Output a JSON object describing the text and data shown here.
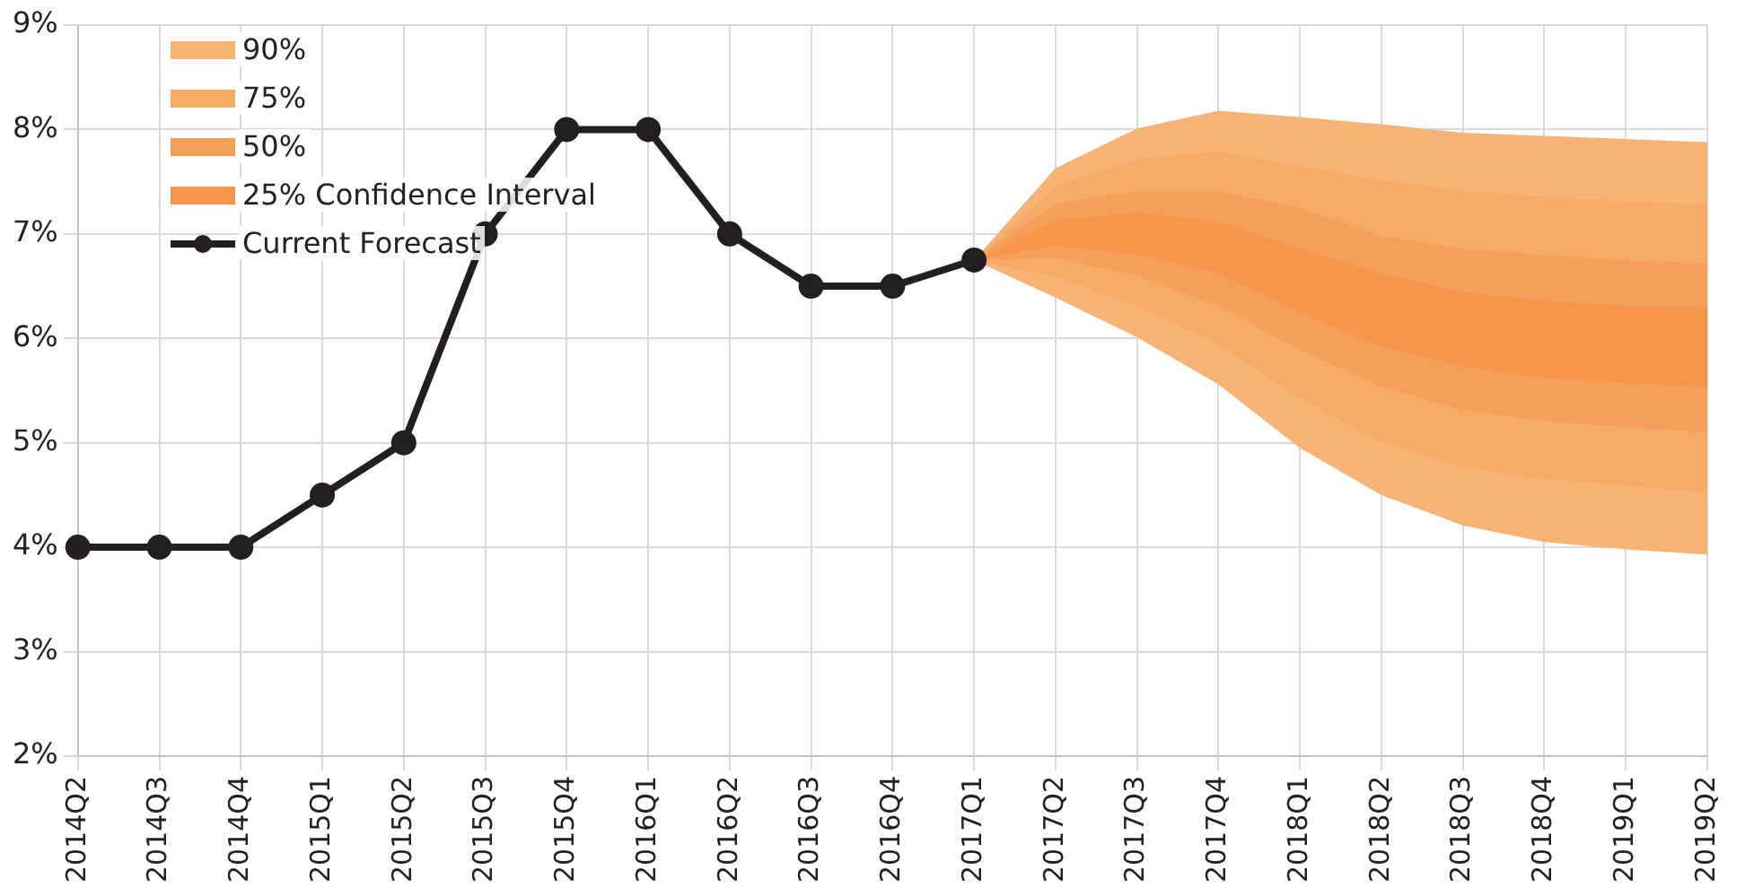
{
  "chart_data": {
    "type": "line",
    "categories": [
      "2014Q2",
      "2014Q3",
      "2014Q4",
      "2015Q1",
      "2015Q2",
      "2015Q3",
      "2015Q4",
      "2016Q1",
      "2016Q2",
      "2016Q3",
      "2016Q4",
      "2017Q1",
      "2017Q2",
      "2017Q3",
      "2017Q4",
      "2018Q1",
      "2018Q2",
      "2018Q3",
      "2018Q4",
      "2019Q1",
      "2019Q2"
    ],
    "series": [
      {
        "name": "90%",
        "type": "area",
        "color": "#f7b275",
        "values": [
          null,
          null,
          null,
          null,
          null,
          null,
          null,
          null,
          null,
          null,
          null,
          null,
          null,
          null,
          null,
          null,
          null,
          null,
          null,
          null,
          null
        ],
        "lower": [
          null,
          null,
          null,
          null,
          null,
          null,
          null,
          null,
          null,
          null,
          null,
          6.75,
          6.39,
          6.01,
          5.56,
          4.95,
          4.5,
          4.21,
          4.05,
          3.98,
          3.93
        ],
        "upper": [
          null,
          null,
          null,
          null,
          null,
          null,
          null,
          null,
          null,
          null,
          null,
          6.75,
          7.63,
          8.01,
          8.18,
          8.12,
          8.05,
          7.97,
          7.94,
          7.91,
          7.88
        ]
      },
      {
        "name": "75%",
        "type": "area",
        "color": "#f6aa68",
        "values": [
          null,
          null,
          null,
          null,
          null,
          null,
          null,
          null,
          null,
          null,
          null,
          null,
          null,
          null,
          null,
          null,
          null,
          null,
          null,
          null,
          null
        ],
        "lower": [
          null,
          null,
          null,
          null,
          null,
          null,
          null,
          null,
          null,
          null,
          null,
          6.75,
          6.59,
          6.31,
          5.95,
          5.42,
          5.01,
          4.77,
          4.65,
          4.59,
          4.53
        ],
        "upper": [
          null,
          null,
          null,
          null,
          null,
          null,
          null,
          null,
          null,
          null,
          null,
          6.75,
          7.45,
          7.72,
          7.79,
          7.65,
          7.51,
          7.41,
          7.36,
          7.31,
          7.28
        ]
      },
      {
        "name": "50%",
        "type": "area",
        "color": "#f5a05a",
        "values": [
          null,
          null,
          null,
          null,
          null,
          null,
          null,
          null,
          null,
          null,
          null,
          null,
          null,
          null,
          null,
          null,
          null,
          null,
          null,
          null,
          null
        ],
        "lower": [
          null,
          null,
          null,
          null,
          null,
          null,
          null,
          null,
          null,
          null,
          null,
          6.75,
          6.77,
          6.6,
          6.31,
          5.89,
          5.54,
          5.31,
          5.21,
          5.15,
          5.1
        ],
        "upper": [
          null,
          null,
          null,
          null,
          null,
          null,
          null,
          null,
          null,
          null,
          null,
          6.75,
          7.29,
          7.41,
          7.41,
          7.25,
          6.98,
          6.86,
          6.8,
          6.75,
          6.72
        ]
      },
      {
        "name": "25% Confidence Interval",
        "type": "area",
        "color": "#f5964a",
        "values": [
          null,
          null,
          null,
          null,
          null,
          null,
          null,
          null,
          null,
          null,
          null,
          null,
          null,
          null,
          null,
          null,
          null,
          null,
          null,
          null,
          null
        ],
        "lower": [
          null,
          null,
          null,
          null,
          null,
          null,
          null,
          null,
          null,
          null,
          null,
          6.75,
          6.89,
          6.81,
          6.62,
          6.25,
          5.92,
          5.73,
          5.62,
          5.57,
          5.53
        ],
        "upper": [
          null,
          null,
          null,
          null,
          null,
          null,
          null,
          null,
          null,
          null,
          null,
          6.75,
          7.13,
          7.21,
          7.11,
          6.86,
          6.62,
          6.44,
          6.36,
          6.31,
          6.29
        ]
      },
      {
        "name": "Current Forecast",
        "type": "line",
        "color": "#231f20",
        "values": [
          4,
          4,
          4,
          4.5,
          5,
          7,
          8,
          8,
          7,
          6.5,
          6.5,
          6.75,
          null,
          null,
          null,
          null,
          null,
          null,
          null,
          null,
          null
        ]
      }
    ],
    "ylim": [
      2,
      9
    ],
    "yticks": [
      {
        "value": 2,
        "label": "2%"
      },
      {
        "value": 3,
        "label": "3%"
      },
      {
        "value": 4,
        "label": "4%"
      },
      {
        "value": 5,
        "label": "5%"
      },
      {
        "value": 6,
        "label": "6%"
      },
      {
        "value": 7,
        "label": "7%"
      },
      {
        "value": 8,
        "label": "8%"
      },
      {
        "value": 9,
        "label": "9%"
      }
    ],
    "grid": true,
    "legend": "top left",
    "marker": "circle",
    "line_style": "solid"
  }
}
